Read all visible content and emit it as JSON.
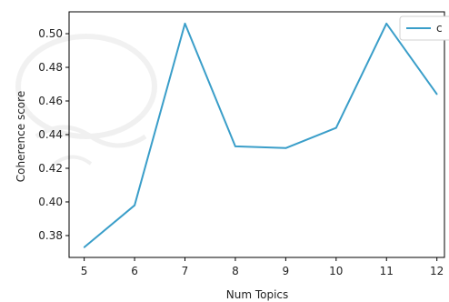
{
  "chart_data": {
    "type": "line",
    "xlabel": "Num Topics",
    "ylabel": "Coherence score",
    "x": [
      5,
      6,
      7,
      8,
      9,
      10,
      11,
      12
    ],
    "series": [
      {
        "name": "c",
        "values": [
          0.373,
          0.398,
          0.506,
          0.433,
          0.432,
          0.444,
          0.506,
          0.464
        ],
        "color": "#3a9ec9"
      }
    ],
    "xlim": [
      4.7,
      12.15
    ],
    "ylim": [
      0.367,
      0.513
    ],
    "x_ticks": [
      "5",
      "6",
      "7",
      "8",
      "9",
      "10",
      "11",
      "12"
    ],
    "y_ticks": [
      "0.38",
      "0.40",
      "0.42",
      "0.44",
      "0.46",
      "0.48",
      "0.50"
    ],
    "legend_position": "top-right",
    "grid": false
  }
}
